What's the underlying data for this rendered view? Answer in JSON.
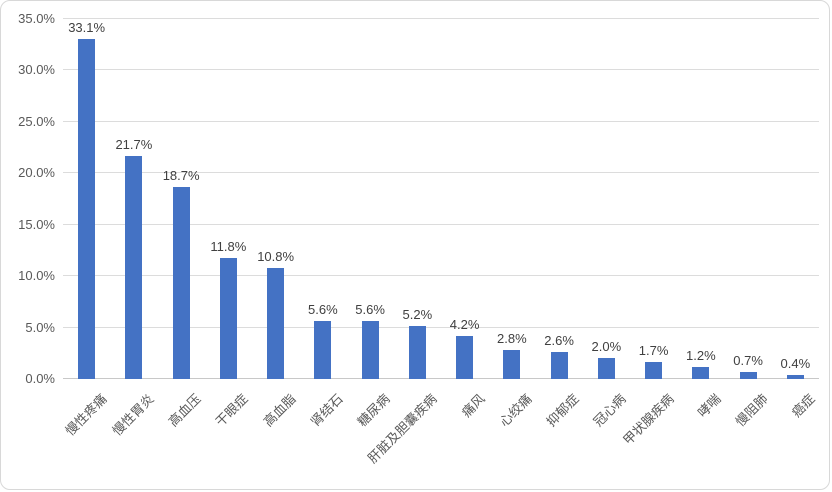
{
  "chart_data": {
    "type": "bar",
    "title": "",
    "xlabel": "",
    "ylabel": "",
    "categories": [
      "慢性疼痛",
      "慢性胃炎",
      "高血压",
      "干眼症",
      "高血脂",
      "肾结石",
      "糖尿病",
      "肝脏及胆囊疾病",
      "痛风",
      "心绞痛",
      "抑郁症",
      "冠心病",
      "甲状腺疾病",
      "哮喘",
      "慢阻肺",
      "癌症"
    ],
    "values": [
      33.1,
      21.7,
      18.7,
      11.8,
      10.8,
      5.6,
      5.6,
      5.2,
      4.2,
      2.8,
      2.6,
      2.0,
      1.7,
      1.2,
      0.7,
      0.4
    ],
    "data_labels": [
      "33.1%",
      "21.7%",
      "18.7%",
      "11.8%",
      "10.8%",
      "5.6%",
      "5.6%",
      "5.2%",
      "4.2%",
      "2.8%",
      "2.6%",
      "2.0%",
      "1.7%",
      "1.2%",
      "0.7%",
      "0.4%"
    ],
    "ylim": [
      0,
      35
    ],
    "ytick_step": 5,
    "ytick_labels": [
      "0.0%",
      "5.0%",
      "10.0%",
      "15.0%",
      "20.0%",
      "25.0%",
      "30.0%",
      "35.0%"
    ],
    "grid": true,
    "legend": false,
    "bar_color": "#4472C4",
    "gridline_color": "#DCDCDC",
    "axis_line_color": "#C8C8C8",
    "axis_text_color": "#595959",
    "data_label_color": "#404040"
  }
}
